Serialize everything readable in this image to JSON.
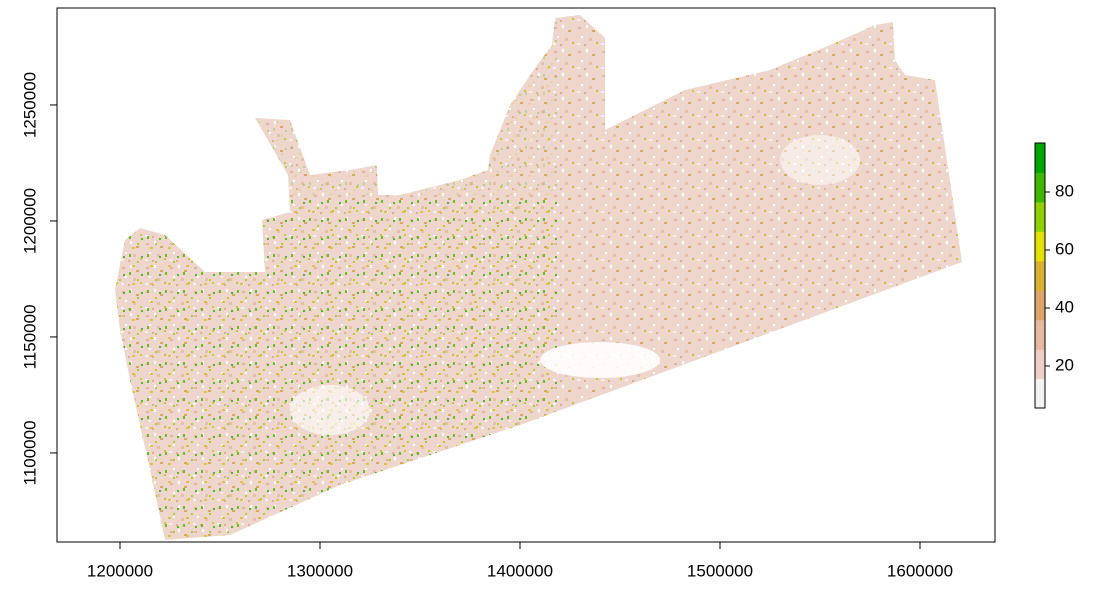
{
  "chart_data": {
    "type": "raster",
    "xlim": [
      1168500,
      1637500
    ],
    "xticks": [
      1200000,
      1300000,
      1400000,
      1500000,
      1600000
    ],
    "ylim": [
      1061600,
      1291800
    ],
    "yticks": [
      1100000,
      1150000,
      1200000,
      1250000
    ],
    "colorbar": {
      "lim": [
        5.5,
        96.9
      ],
      "ticks": [
        20,
        40,
        60,
        80
      ],
      "colors": [
        "#f2f2f2",
        "#ecd0c4",
        "#e6b8a0",
        "#dca468",
        "#d9b030",
        "#e2e200",
        "#8ed000",
        "#3cb800",
        "#00a600"
      ]
    }
  }
}
